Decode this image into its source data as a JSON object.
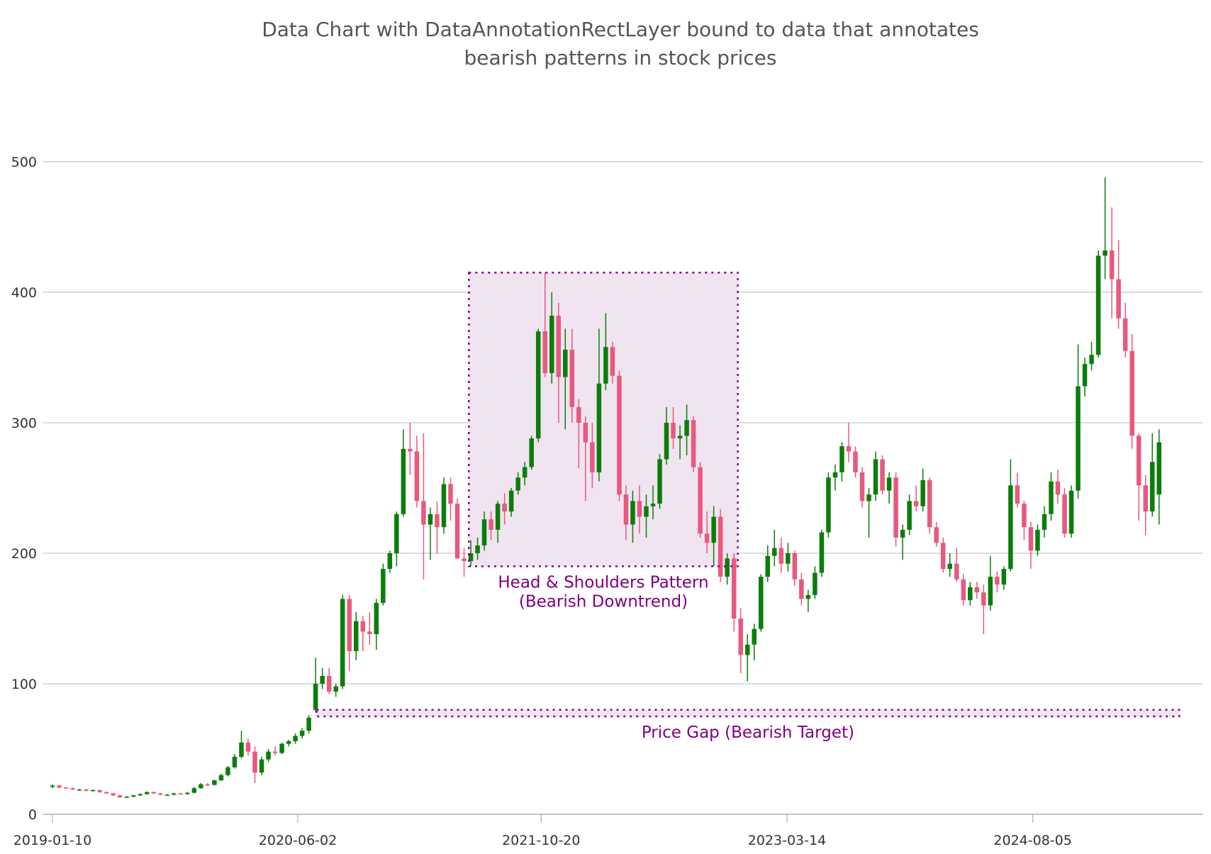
{
  "chart_data": {
    "type": "candlestick",
    "title": [
      "Data Chart with DataAnnotationRectLayer bound to data that annotates",
      "bearish patterns in stock prices"
    ],
    "xlabel": "",
    "ylabel": "",
    "ylim": [
      0,
      500
    ],
    "y_ticks": [
      "0",
      "100",
      "200",
      "300",
      "400",
      "500"
    ],
    "x_ticks": [
      "2019-01-10",
      "2020-06-02",
      "2021-10-20",
      "2023-03-14",
      "2024-08-05"
    ],
    "grid": "horizontal",
    "colors": {
      "up": "#0b7d0b",
      "down": "#e8587f",
      "annotation": "#800080",
      "annotation_fill": "#f0e4f0",
      "grid": "#c8c8c8",
      "axis": "#b0b0b0"
    },
    "annotations": [
      {
        "label": [
          "Head & Shoulders Pattern",
          "(Bearish Downtrend)"
        ],
        "start": "2021-05-23",
        "end": "2022-12-02",
        "low": 190,
        "high": 415
      },
      {
        "label": [
          "Price Gap (Bearish Target)"
        ],
        "start": "2020-07-11",
        "end": "2025-06-05",
        "low": 75,
        "high": 80
      }
    ],
    "columns": [
      "date",
      "open",
      "high",
      "low",
      "close"
    ],
    "candles": [
      [
        "2019-01-10",
        21,
        23,
        20,
        22
      ],
      [
        "2019-01-24",
        22,
        22.5,
        20,
        20.5
      ],
      [
        "2019-02-07",
        20.5,
        21,
        19.5,
        20
      ],
      [
        "2019-02-21",
        20,
        20.5,
        18.5,
        19
      ],
      [
        "2019-03-07",
        19,
        19.5,
        18,
        19
      ],
      [
        "2019-03-21",
        19,
        19.5,
        17.5,
        18
      ],
      [
        "2019-04-04",
        18,
        19,
        17.5,
        18.5
      ],
      [
        "2019-04-18",
        18.5,
        19,
        16.5,
        17
      ],
      [
        "2019-05-02",
        17,
        17.5,
        15.5,
        16
      ],
      [
        "2019-05-16",
        16,
        16.5,
        14,
        14.5
      ],
      [
        "2019-05-30",
        14.5,
        15,
        12.5,
        13
      ],
      [
        "2019-06-13",
        13,
        14,
        12.5,
        13.5
      ],
      [
        "2019-06-27",
        13.5,
        15,
        13,
        14.5
      ],
      [
        "2019-07-11",
        14.5,
        16,
        14,
        15.5
      ],
      [
        "2019-07-25",
        15.5,
        17.5,
        15,
        17
      ],
      [
        "2019-08-08",
        17,
        17.5,
        15.5,
        16
      ],
      [
        "2019-08-22",
        16,
        16.5,
        14.5,
        15
      ],
      [
        "2019-09-05",
        15,
        15.5,
        14.5,
        15
      ],
      [
        "2019-09-19",
        15,
        16.5,
        14.5,
        16
      ],
      [
        "2019-10-03",
        16,
        16.5,
        15,
        15.5
      ],
      [
        "2019-10-17",
        15.5,
        17,
        15,
        16.5
      ],
      [
        "2019-10-31",
        16.5,
        21,
        16,
        20
      ],
      [
        "2019-11-14",
        20,
        24,
        19.5,
        23
      ],
      [
        "2019-11-28",
        23,
        24,
        21.5,
        22.5
      ],
      [
        "2019-12-12",
        22.5,
        26.5,
        22,
        26
      ],
      [
        "2019-12-26",
        26,
        31,
        25.5,
        30
      ],
      [
        "2020-01-09",
        30,
        37,
        29,
        36
      ],
      [
        "2020-01-23",
        36,
        46,
        35,
        44
      ],
      [
        "2020-02-06",
        44,
        64,
        43,
        55
      ],
      [
        "2020-02-20",
        55,
        58,
        45,
        48
      ],
      [
        "2020-03-05",
        48,
        52,
        24,
        32
      ],
      [
        "2020-03-19",
        32,
        44,
        30,
        42
      ],
      [
        "2020-04-02",
        42,
        50,
        40,
        48
      ],
      [
        "2020-04-16",
        48,
        52,
        45,
        47
      ],
      [
        "2020-04-30",
        47,
        55,
        46,
        54
      ],
      [
        "2020-05-14",
        54,
        57,
        52,
        56
      ],
      [
        "2020-05-28",
        56,
        62,
        54,
        60
      ],
      [
        "2020-06-11",
        60,
        66,
        58,
        64
      ],
      [
        "2020-06-25",
        64,
        76,
        62,
        74
      ],
      [
        "2020-07-09",
        80,
        120,
        78,
        100
      ],
      [
        "2020-07-23",
        100,
        112,
        96,
        106
      ],
      [
        "2020-08-06",
        106,
        112,
        92,
        94
      ],
      [
        "2020-08-20",
        94,
        100,
        90,
        98
      ],
      [
        "2020-09-03",
        98,
        168,
        96,
        165
      ],
      [
        "2020-09-17",
        165,
        168,
        110,
        125
      ],
      [
        "2020-10-01",
        125,
        155,
        118,
        148
      ],
      [
        "2020-10-15",
        148,
        152,
        125,
        140
      ],
      [
        "2020-10-29",
        140,
        155,
        130,
        138
      ],
      [
        "2020-11-12",
        138,
        165,
        126,
        162
      ],
      [
        "2020-11-26",
        162,
        192,
        160,
        188
      ],
      [
        "2020-12-10",
        188,
        202,
        185,
        200
      ],
      [
        "2020-12-24",
        200,
        232,
        190,
        230
      ],
      [
        "2021-01-07",
        230,
        295,
        228,
        280
      ],
      [
        "2021-01-21",
        280,
        300,
        260,
        278
      ],
      [
        "2021-02-04",
        278,
        290,
        235,
        240
      ],
      [
        "2021-02-18",
        240,
        292,
        180,
        222
      ],
      [
        "2021-03-04",
        222,
        235,
        195,
        230
      ],
      [
        "2021-03-18",
        230,
        240,
        200,
        220
      ],
      [
        "2021-04-01",
        220,
        258,
        215,
        253
      ],
      [
        "2021-04-15",
        253,
        258,
        225,
        238
      ],
      [
        "2021-04-29",
        238,
        242,
        196,
        196
      ],
      [
        "2021-05-13",
        196,
        204,
        182,
        194
      ],
      [
        "2021-05-27",
        194,
        210,
        190,
        200
      ],
      [
        "2021-06-10",
        200,
        212,
        195,
        206
      ],
      [
        "2021-06-24",
        206,
        232,
        202,
        226
      ],
      [
        "2021-07-08",
        226,
        232,
        210,
        218
      ],
      [
        "2021-07-22",
        218,
        240,
        208,
        238
      ],
      [
        "2021-08-05",
        238,
        246,
        222,
        232
      ],
      [
        "2021-08-19",
        232,
        250,
        228,
        248
      ],
      [
        "2021-09-02",
        248,
        262,
        245,
        258
      ],
      [
        "2021-09-16",
        258,
        270,
        252,
        266
      ],
      [
        "2021-09-30",
        266,
        290,
        264,
        288
      ],
      [
        "2021-10-14",
        288,
        372,
        285,
        370
      ],
      [
        "2021-10-28",
        370,
        415,
        335,
        338
      ],
      [
        "2021-11-11",
        338,
        400,
        330,
        382
      ],
      [
        "2021-11-25",
        382,
        392,
        300,
        335
      ],
      [
        "2021-12-09",
        335,
        372,
        295,
        356
      ],
      [
        "2021-12-23",
        356,
        372,
        300,
        312
      ],
      [
        "2022-01-06",
        312,
        318,
        265,
        300
      ],
      [
        "2022-01-20",
        300,
        305,
        240,
        285
      ],
      [
        "2022-02-03",
        285,
        300,
        250,
        262
      ],
      [
        "2022-02-17",
        262,
        372,
        255,
        330
      ],
      [
        "2022-03-03",
        330,
        384,
        325,
        358
      ],
      [
        "2022-03-17",
        358,
        362,
        330,
        336
      ],
      [
        "2022-03-31",
        336,
        340,
        240,
        245
      ],
      [
        "2022-04-14",
        245,
        252,
        210,
        222
      ],
      [
        "2022-04-28",
        222,
        248,
        208,
        240
      ],
      [
        "2022-05-12",
        240,
        252,
        215,
        228
      ],
      [
        "2022-05-26",
        228,
        245,
        212,
        236
      ],
      [
        "2022-06-09",
        236,
        252,
        226,
        238
      ],
      [
        "2022-06-23",
        238,
        276,
        234,
        272
      ],
      [
        "2022-07-07",
        272,
        312,
        268,
        300
      ],
      [
        "2022-07-21",
        300,
        312,
        280,
        288
      ],
      [
        "2022-08-04",
        288,
        298,
        272,
        290
      ],
      [
        "2022-08-18",
        290,
        314,
        275,
        302
      ],
      [
        "2022-09-01",
        302,
        305,
        262,
        266
      ],
      [
        "2022-09-15",
        266,
        270,
        212,
        215
      ],
      [
        "2022-09-29",
        215,
        232,
        200,
        208
      ],
      [
        "2022-10-13",
        208,
        236,
        190,
        228
      ],
      [
        "2022-10-27",
        228,
        234,
        178,
        182
      ],
      [
        "2022-11-10",
        182,
        200,
        176,
        196
      ],
      [
        "2022-11-24",
        196,
        200,
        140,
        150
      ],
      [
        "2022-12-08",
        150,
        158,
        108,
        122
      ],
      [
        "2022-12-22",
        122,
        138,
        102,
        130
      ],
      [
        "2023-01-05",
        130,
        146,
        118,
        142
      ],
      [
        "2023-01-19",
        142,
        184,
        140,
        182
      ],
      [
        "2023-02-02",
        182,
        206,
        178,
        198
      ],
      [
        "2023-02-16",
        198,
        218,
        190,
        204
      ],
      [
        "2023-03-02",
        204,
        212,
        185,
        192
      ],
      [
        "2023-03-16",
        192,
        208,
        186,
        200
      ],
      [
        "2023-03-30",
        200,
        202,
        175,
        180
      ],
      [
        "2023-04-13",
        180,
        185,
        160,
        165
      ],
      [
        "2023-04-27",
        165,
        172,
        155,
        168
      ],
      [
        "2023-05-11",
        168,
        190,
        165,
        185
      ],
      [
        "2023-05-25",
        185,
        218,
        182,
        216
      ],
      [
        "2023-06-08",
        216,
        262,
        212,
        258
      ],
      [
        "2023-06-22",
        258,
        268,
        248,
        262
      ],
      [
        "2023-07-06",
        262,
        285,
        255,
        282
      ],
      [
        "2023-07-20",
        282,
        300,
        270,
        278
      ],
      [
        "2023-08-03",
        278,
        282,
        258,
        262
      ],
      [
        "2023-08-17",
        262,
        266,
        235,
        240
      ],
      [
        "2023-08-31",
        240,
        250,
        212,
        245
      ],
      [
        "2023-09-14",
        245,
        278,
        240,
        272
      ],
      [
        "2023-09-28",
        272,
        275,
        245,
        248
      ],
      [
        "2023-10-12",
        248,
        262,
        238,
        258
      ],
      [
        "2023-10-26",
        258,
        262,
        205,
        212
      ],
      [
        "2023-11-09",
        212,
        222,
        195,
        218
      ],
      [
        "2023-11-23",
        218,
        245,
        214,
        240
      ],
      [
        "2023-12-07",
        240,
        252,
        232,
        236
      ],
      [
        "2023-12-21",
        236,
        265,
        232,
        256
      ],
      [
        "2024-01-04",
        256,
        258,
        215,
        220
      ],
      [
        "2024-01-18",
        220,
        224,
        205,
        208
      ],
      [
        "2024-02-01",
        208,
        212,
        185,
        188
      ],
      [
        "2024-02-15",
        188,
        200,
        182,
        192
      ],
      [
        "2024-02-29",
        192,
        204,
        178,
        180
      ],
      [
        "2024-03-14",
        180,
        184,
        160,
        164
      ],
      [
        "2024-03-28",
        164,
        178,
        160,
        174
      ],
      [
        "2024-04-11",
        174,
        178,
        165,
        170
      ],
      [
        "2024-04-25",
        170,
        176,
        138,
        160
      ],
      [
        "2024-05-09",
        160,
        198,
        156,
        182
      ],
      [
        "2024-05-23",
        182,
        186,
        170,
        176
      ],
      [
        "2024-06-06",
        176,
        190,
        172,
        188
      ],
      [
        "2024-06-20",
        188,
        272,
        186,
        252
      ],
      [
        "2024-07-04",
        252,
        262,
        235,
        238
      ],
      [
        "2024-07-18",
        238,
        240,
        210,
        220
      ],
      [
        "2024-08-01",
        220,
        224,
        188,
        202
      ],
      [
        "2024-08-15",
        202,
        222,
        198,
        218
      ],
      [
        "2024-08-29",
        218,
        236,
        212,
        230
      ],
      [
        "2024-09-12",
        230,
        262,
        225,
        255
      ],
      [
        "2024-09-26",
        255,
        264,
        238,
        245
      ],
      [
        "2024-10-10",
        245,
        250,
        212,
        215
      ],
      [
        "2024-10-24",
        215,
        252,
        212,
        248
      ],
      [
        "2024-11-07",
        248,
        360,
        242,
        328
      ],
      [
        "2024-11-21",
        328,
        350,
        320,
        345
      ],
      [
        "2024-12-05",
        345,
        362,
        340,
        352
      ],
      [
        "2024-12-19",
        352,
        432,
        350,
        428
      ],
      [
        "2025-01-02",
        428,
        488,
        410,
        432
      ],
      [
        "2025-01-16",
        432,
        465,
        380,
        410
      ],
      [
        "2025-01-30",
        410,
        440,
        372,
        380
      ],
      [
        "2025-02-13",
        380,
        392,
        350,
        355
      ],
      [
        "2025-02-27",
        355,
        368,
        280,
        290
      ],
      [
        "2025-03-13",
        290,
        292,
        225,
        252
      ],
      [
        "2025-03-27",
        252,
        260,
        214,
        232
      ],
      [
        "2025-04-10",
        232,
        292,
        228,
        270
      ],
      [
        "2025-04-24",
        245,
        295,
        222,
        285
      ]
    ]
  }
}
